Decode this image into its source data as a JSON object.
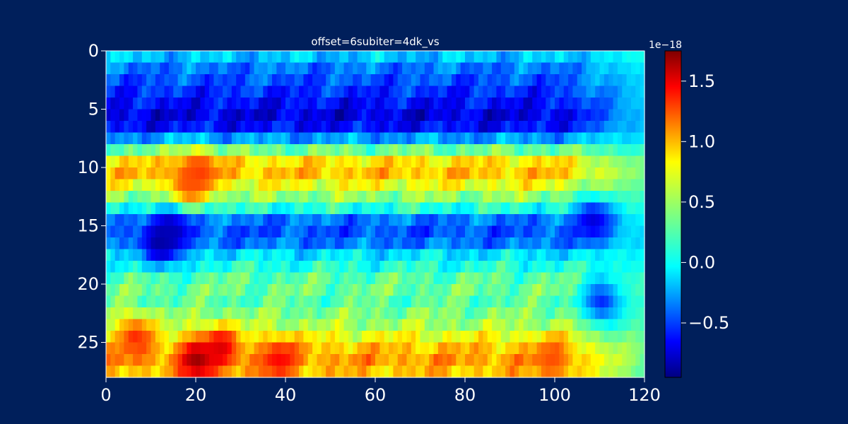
{
  "figure": {
    "background": "#001f5b",
    "foreground": "#ffffff"
  },
  "chart_data": {
    "type": "heatmap",
    "title": "offset=6subiter=4dk_vs",
    "xlabel": "",
    "ylabel": "",
    "xlim": [
      0,
      120
    ],
    "ylim": [
      28,
      0
    ],
    "x_ticks": [
      "0",
      "20",
      "40",
      "60",
      "80",
      "100",
      "120"
    ],
    "y_ticks": [
      "0",
      "5",
      "10",
      "15",
      "20",
      "25"
    ],
    "grid": false,
    "shape": {
      "rows": 28,
      "cols": 120
    },
    "colormap": "jet",
    "colorbar": {
      "min": -0.95,
      "max": 1.75,
      "scale_label": "1e−18",
      "ticks": [
        {
          "value": -0.5,
          "label": "−0.5"
        },
        {
          "value": 0.0,
          "label": "0.0"
        },
        {
          "value": 0.5,
          "label": "0.5"
        },
        {
          "value": 1.0,
          "label": "1.0"
        },
        {
          "value": 1.5,
          "label": "1.5"
        }
      ]
    },
    "row_profile": [
      -0.1,
      -0.3,
      -0.4,
      -0.5,
      -0.6,
      -0.7,
      -0.6,
      -0.2,
      0.35,
      0.8,
      0.9,
      0.7,
      0.45,
      0.15,
      -0.3,
      -0.4,
      -0.3,
      0.0,
      0.15,
      0.3,
      0.35,
      0.3,
      0.4,
      0.5,
      0.7,
      0.9,
      1.0,
      0.9
    ],
    "column_fade_start": 100,
    "column_fade_end": 120,
    "hot_spots": [
      {
        "row": 10,
        "col": 20,
        "value": 1.3
      },
      {
        "row": 11,
        "col": 18,
        "value": 1.2
      },
      {
        "row": 16,
        "col": 12,
        "value": -0.9
      },
      {
        "row": 15,
        "col": 14,
        "value": -0.8
      },
      {
        "row": 26,
        "col": 20,
        "value": 1.7
      },
      {
        "row": 25,
        "col": 25,
        "value": 1.5
      },
      {
        "row": 26,
        "col": 38,
        "value": 1.4
      },
      {
        "row": 24,
        "col": 6,
        "value": 1.3
      },
      {
        "row": 26,
        "col": 99,
        "value": 1.2
      },
      {
        "row": 21,
        "col": 110,
        "value": -0.5
      },
      {
        "row": 14,
        "col": 108,
        "value": -0.7
      }
    ]
  }
}
